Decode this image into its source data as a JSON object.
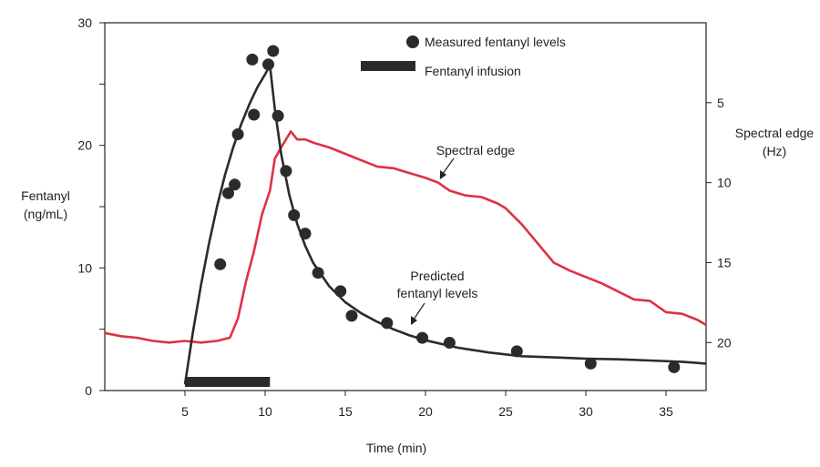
{
  "chart_data": {
    "type": "line",
    "xlabel": "Time (min)",
    "ylabel_lines": [
      "Fentanyl",
      "(ng/mL)"
    ],
    "y2label_lines": [
      "Spectral edge",
      "(Hz)"
    ],
    "xlim": [
      0,
      37.5
    ],
    "ylim": [
      0,
      30
    ],
    "y2lim": [
      0,
      23
    ],
    "y2_reversed": true,
    "x_ticks": [
      5,
      10,
      15,
      20,
      25,
      30,
      35
    ],
    "y_ticks": [
      0,
      10,
      20,
      30
    ],
    "y_minor_ticks": [
      5,
      15,
      25
    ],
    "y2_ticks": [
      5,
      10,
      15,
      20
    ],
    "legend": [
      {
        "label": "Measured fentanyl levels",
        "marker": "dot"
      },
      {
        "label": "Fentanyl infusion",
        "marker": "bar"
      }
    ],
    "infusion": {
      "start": 5,
      "end": 10.3
    },
    "annotations": [
      {
        "lines": [
          "Spectral edge"
        ]
      },
      {
        "lines": [
          "Predicted",
          "fentanyl levels"
        ]
      }
    ],
    "series": [
      {
        "name": "Measured fentanyl levels",
        "kind": "scatter",
        "color": "#2b2b2b",
        "x": [
          7.2,
          7.7,
          8.1,
          8.3,
          9.3,
          9.2,
          10.2,
          10.5,
          10.8,
          11.3,
          11.8,
          12.5,
          13.3,
          14.7,
          15.4,
          17.6,
          19.8,
          21.5,
          25.7,
          30.3,
          35.5
        ],
        "y": [
          10.3,
          16.1,
          16.8,
          20.9,
          22.5,
          27.0,
          26.6,
          27.7,
          22.4,
          17.9,
          14.3,
          12.8,
          9.6,
          8.1,
          6.1,
          5.5,
          4.3,
          3.9,
          3.2,
          2.2,
          1.9
        ]
      },
      {
        "name": "Predicted fentanyl levels",
        "kind": "line",
        "color": "#2b2b2b",
        "x": [
          5.0,
          5.5,
          6.0,
          6.5,
          7.0,
          7.5,
          8.0,
          8.5,
          9.0,
          9.5,
          10.0,
          10.3,
          10.6,
          11.0,
          11.5,
          12.0,
          12.5,
          13.0,
          14.0,
          15.0,
          16.0,
          17.0,
          18.0,
          19.0,
          20.0,
          22.0,
          24.0,
          26.0,
          28.0,
          30.0,
          32.0,
          34.0,
          36.0,
          37.5
        ],
        "y": [
          0.5,
          4.8,
          8.6,
          12.0,
          15.0,
          17.6,
          19.8,
          21.7,
          23.3,
          24.7,
          25.8,
          26.5,
          23.0,
          19.3,
          16.0,
          13.6,
          11.8,
          10.4,
          8.5,
          7.2,
          6.3,
          5.6,
          5.0,
          4.5,
          4.1,
          3.5,
          3.1,
          2.8,
          2.7,
          2.6,
          2.55,
          2.45,
          2.35,
          2.2
        ]
      },
      {
        "name": "Spectral edge",
        "kind": "line",
        "axis": "right",
        "color": "#e03045",
        "x": [
          0,
          1,
          2,
          3,
          4,
          5,
          6,
          7,
          7.8,
          8.3,
          8.8,
          9.3,
          9.8,
          10.3,
          10.6,
          11.0,
          11.6,
          12.0,
          12.5,
          13.0,
          14.0,
          15.0,
          16.0,
          17.0,
          18.0,
          19.0,
          20.0,
          20.8,
          21.5,
          22.5,
          23.5,
          24.5,
          25.0,
          26.0,
          27.0,
          28.0,
          29.0,
          30.0,
          31.0,
          32.0,
          33.0,
          34.0,
          35.0,
          36.0,
          37.0,
          37.5
        ],
        "y": [
          19.4,
          19.6,
          19.7,
          19.9,
          20.0,
          19.9,
          20.0,
          19.9,
          19.7,
          18.5,
          16.2,
          14.3,
          12.0,
          10.5,
          8.5,
          7.8,
          6.8,
          7.3,
          7.3,
          7.5,
          7.8,
          8.2,
          8.6,
          9.0,
          9.1,
          9.4,
          9.7,
          10.0,
          10.5,
          10.8,
          10.9,
          11.3,
          11.6,
          12.6,
          13.8,
          15.0,
          15.5,
          15.9,
          16.3,
          16.8,
          17.3,
          17.4,
          18.1,
          18.2,
          18.6,
          18.9
        ]
      }
    ]
  }
}
